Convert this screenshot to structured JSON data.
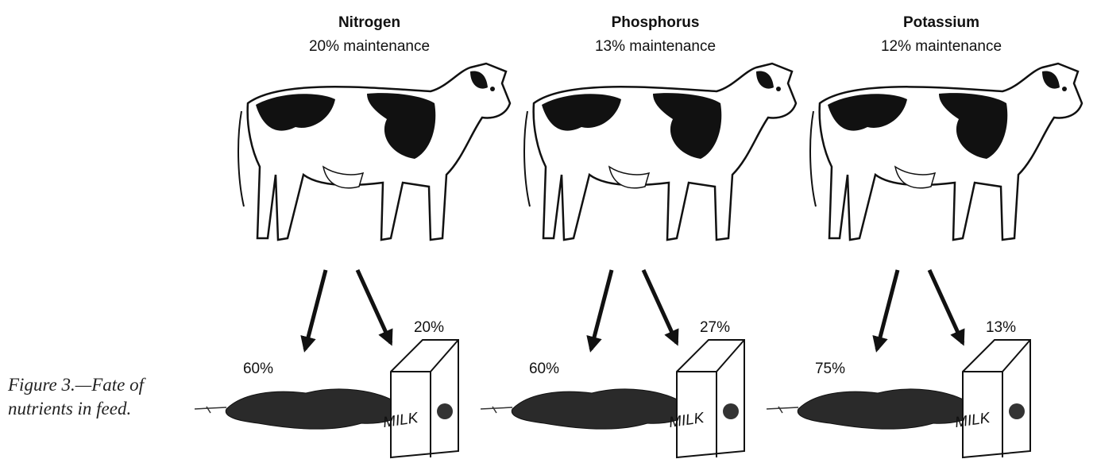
{
  "caption": "Figure 3.—Fate of nutrients in feed.",
  "carton_label": "MILK",
  "panels": [
    {
      "nutrient": "Nitrogen",
      "maintenance": "20% maintenance",
      "manure": "60%",
      "milk": "20%"
    },
    {
      "nutrient": "Phosphorus",
      "maintenance": "13% maintenance",
      "manure": "60%",
      "milk": "27%"
    },
    {
      "nutrient": "Potassium",
      "maintenance": "12% maintenance",
      "manure": "75%",
      "milk": "13%"
    }
  ]
}
